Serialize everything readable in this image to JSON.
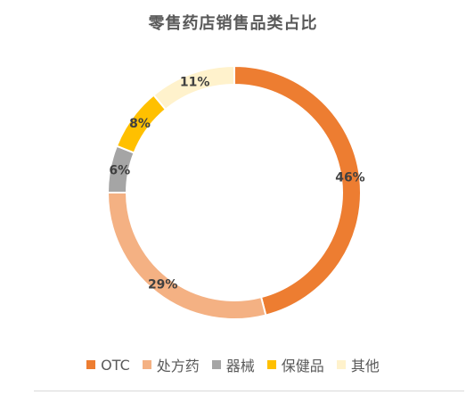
{
  "chart_data": {
    "type": "pie",
    "title": "零售药店销售品类占比",
    "categories": [
      "OTC",
      "处方药",
      "器械",
      "保健品",
      "其他"
    ],
    "values": [
      46,
      29,
      6,
      8,
      11
    ],
    "labels": [
      "46%",
      "29%",
      "6%",
      "8%",
      "11%"
    ],
    "colors": [
      "#ed7d31",
      "#f4b183",
      "#a5a5a5",
      "#ffc000",
      "#fff2cc"
    ],
    "legend": "bottom"
  }
}
